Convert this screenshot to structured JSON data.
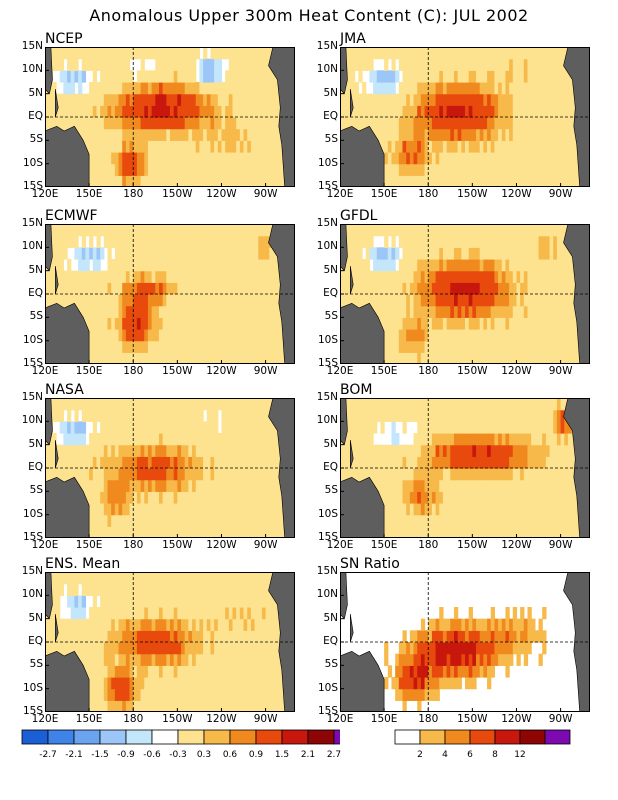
{
  "title": "Anomalous Upper 300m Heat Content (C): JUL 2002",
  "colors": {
    "land": "#5e5e5e",
    "frame": "#000000",
    "anomaly_scale": [
      "#1a5fd6",
      "#3f82e8",
      "#6aa3f0",
      "#9bc6f7",
      "#c4e6fb",
      "#ffffff",
      "#fde38f",
      "#f7b94a",
      "#f08a1e",
      "#e84a0e",
      "#c8170c",
      "#8d0505",
      "#7d0ab0"
    ],
    "snr_scale": [
      "#ffffff",
      "#f7b94a",
      "#f08a1e",
      "#e84a0e",
      "#c8170c",
      "#8d0505",
      "#7d0ab0"
    ]
  },
  "axes": {
    "x_ticks": [
      "120E",
      "150E",
      "180",
      "150W",
      "120W",
      "90W"
    ],
    "y_ticks": [
      "15N",
      "10N",
      "5N",
      "EQ",
      "5S",
      "10S",
      "15S"
    ],
    "xlim_deg_east": [
      120,
      290
    ],
    "ylim_deg_north": [
      -15,
      15
    ],
    "reference_lines": [
      "EQ",
      "180"
    ]
  },
  "panels": [
    {
      "name": "NCEP"
    },
    {
      "name": "JMA"
    },
    {
      "name": "ECMWF"
    },
    {
      "name": "GFDL"
    },
    {
      "name": "NASA"
    },
    {
      "name": "BOM"
    },
    {
      "name": "ENS. Mean"
    },
    {
      "name": "SN Ratio"
    }
  ],
  "colorbars": {
    "anomaly_labels": [
      "-2.7",
      "-2.1",
      "-1.5",
      "-0.9",
      "-0.6",
      "-0.3",
      "0.3",
      "0.6",
      "0.9",
      "1.5",
      "2.1",
      "2.7"
    ],
    "snr_labels": [
      "2",
      "4",
      "6",
      "8",
      "12"
    ]
  },
  "chart_data": {
    "type": "heatmap",
    "variable": "Anomalous Upper 300m Heat Content (C)",
    "period": "JUL 2002",
    "lon_range": [
      120,
      290
    ],
    "lat_range": [
      -15,
      15
    ],
    "anomaly_levels": [
      -2.7,
      -2.1,
      -1.5,
      -0.9,
      -0.6,
      -0.3,
      0.3,
      0.6,
      0.9,
      1.5,
      2.1,
      2.7
    ],
    "snr_levels": [
      2,
      4,
      6,
      8,
      12
    ],
    "models": [
      "NCEP",
      "JMA",
      "ECMWF",
      "GFDL",
      "NASA",
      "BOM",
      "ENS. Mean"
    ],
    "extra_panel": "SN Ratio",
    "features_approx": [
      {
        "panel": "NCEP",
        "lon": 200,
        "lat": 2,
        "value": 1.5
      },
      {
        "panel": "NCEP",
        "lon": 175,
        "lat": -11,
        "value": 2.1
      },
      {
        "panel": "NCEP",
        "lon": 230,
        "lat": 10,
        "value": -0.9
      },
      {
        "panel": "JMA",
        "lon": 195,
        "lat": 1,
        "value": 1.5
      },
      {
        "panel": "JMA",
        "lon": 150,
        "lat": 8,
        "value": -0.9
      },
      {
        "panel": "ECMWF",
        "lon": 180,
        "lat": -8,
        "value": 1.5
      },
      {
        "panel": "ECMWF",
        "lon": 185,
        "lat": 1,
        "value": 0.9
      },
      {
        "panel": "GFDL",
        "lon": 200,
        "lat": 1,
        "value": 1.5
      },
      {
        "panel": "GFDL",
        "lon": 150,
        "lat": 7,
        "value": -0.9
      },
      {
        "panel": "NASA",
        "lon": 190,
        "lat": 0,
        "value": 0.9
      },
      {
        "panel": "NASA",
        "lon": 140,
        "lat": 8,
        "value": -0.9
      },
      {
        "panel": "BOM",
        "lon": 215,
        "lat": 3,
        "value": 1.5
      },
      {
        "panel": "BOM",
        "lon": 160,
        "lat": 7,
        "value": -0.6
      },
      {
        "panel": "ENS. Mean",
        "lon": 190,
        "lat": 0,
        "value": 0.9
      },
      {
        "panel": "ENS. Mean",
        "lon": 170,
        "lat": -10,
        "value": 1.5
      },
      {
        "panel": "ENS. Mean",
        "lon": 140,
        "lat": 9,
        "value": -0.9
      },
      {
        "panel": "SN Ratio",
        "lon": 195,
        "lat": -2,
        "value": 12
      }
    ]
  }
}
